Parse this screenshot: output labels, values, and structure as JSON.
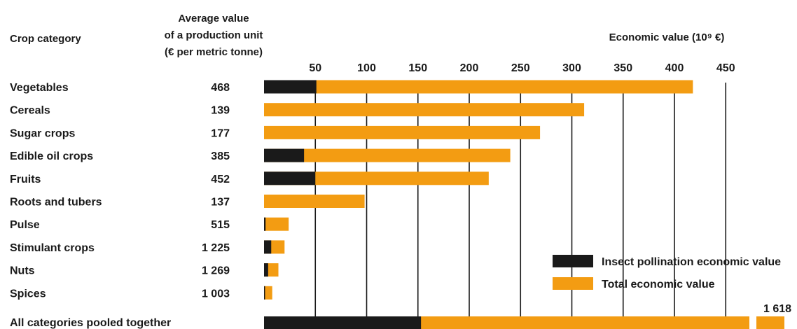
{
  "chart_data": {
    "type": "bar",
    "stacked_overlay": true,
    "orientation": "horizontal",
    "headers": {
      "category": "Crop category",
      "avg_value_lines": [
        "Average value",
        "of a production unit",
        "(€ per metric tonne)"
      ],
      "axis_title": "Economic value (10⁹ €)"
    },
    "categories": [
      "Vegetables",
      "Cereals",
      "Sugar crops",
      "Edible oil crops",
      "Fruits",
      "Roots and tubers",
      "Pulse",
      "Stimulant crops",
      "Nuts",
      "Spices"
    ],
    "avg_values": [
      "468",
      "139",
      "177",
      "385",
      "452",
      "137",
      "515",
      "1 225",
      "1 269",
      "1 003"
    ],
    "series": [
      {
        "name": "Insect pollination economic value",
        "color": "#1a1a1a",
        "values": [
          51,
          0,
          0,
          39,
          50,
          0,
          1.5,
          7,
          4,
          1
        ]
      },
      {
        "name": "Total economic value",
        "color": "#f39c12",
        "values": [
          418,
          312,
          269,
          240,
          219,
          98,
          24,
          20,
          14,
          8
        ]
      }
    ],
    "pooled": {
      "label": "All categories pooled together",
      "insect": 153,
      "total": 1618,
      "total_label": "1 618",
      "axis_break": true
    },
    "ticks": [
      50,
      100,
      150,
      200,
      250,
      300,
      350,
      400,
      450
    ],
    "xlim": [
      0,
      460
    ],
    "legend_position": "bottom-right"
  }
}
